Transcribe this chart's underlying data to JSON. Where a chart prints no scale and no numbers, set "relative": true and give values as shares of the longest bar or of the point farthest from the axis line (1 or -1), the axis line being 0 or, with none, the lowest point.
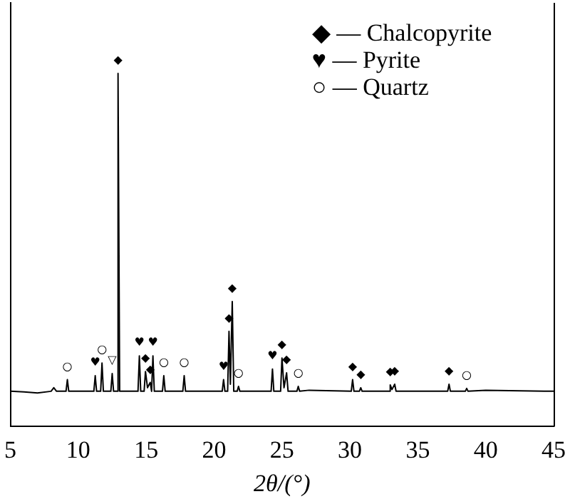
{
  "chart_data": {
    "type": "line",
    "relative": true,
    "xlabel": "2θ/(°)",
    "xlim": [
      5,
      45
    ],
    "xticks": [
      5,
      10,
      15,
      20,
      25,
      30,
      35,
      40,
      45
    ],
    "grid": false,
    "legend": false,
    "marker": "none",
    "line_style": "solid",
    "series": [
      {
        "color": "#000000",
        "x": [
          5,
          6,
          7,
          8,
          8.2,
          8.4,
          9.1,
          9.2,
          9.3,
          10.5,
          11.15,
          11.25,
          11.35,
          11.65,
          11.75,
          11.85,
          12.4,
          12.5,
          12.6,
          12.85,
          12.93,
          13.05,
          14.4,
          14.5,
          14.6,
          14.85,
          14.95,
          15.1,
          15.3,
          15.4,
          15.5,
          15.6,
          16.2,
          16.3,
          16.4,
          17.7,
          17.8,
          17.9,
          20.6,
          20.7,
          20.8,
          21.0,
          21.1,
          21.2,
          21.34,
          21.45,
          21.7,
          21.8,
          21.9,
          24.2,
          24.3,
          24.4,
          24.9,
          25.0,
          25.15,
          25.34,
          25.45,
          26.1,
          26.2,
          26.3,
          27,
          30.1,
          30.2,
          30.3,
          30.7,
          30.8,
          30.9,
          32.9,
          32.97,
          33.1,
          33.3,
          33.4,
          37.2,
          37.3,
          37.4,
          38.5,
          38.6,
          38.7,
          40,
          45
        ],
        "values": [
          0.1,
          0.098,
          0.095,
          0.1,
          0.11,
          0.1,
          0.1,
          0.133,
          0.1,
          0.1,
          0.1,
          0.144,
          0.1,
          0.1,
          0.18,
          0.1,
          0.1,
          0.15,
          0.1,
          0.1,
          1.0,
          0.1,
          0.1,
          0.2,
          0.1,
          0.1,
          0.156,
          0.11,
          0.125,
          0.1,
          0.2,
          0.1,
          0.1,
          0.144,
          0.1,
          0.1,
          0.144,
          0.1,
          0.1,
          0.133,
          0.1,
          0.1,
          0.27,
          0.12,
          0.354,
          0.1,
          0.1,
          0.114,
          0.1,
          0.1,
          0.163,
          0.1,
          0.1,
          0.194,
          0.11,
          0.152,
          0.1,
          0.1,
          0.114,
          0.1,
          0.103,
          0.1,
          0.133,
          0.1,
          0.1,
          0.11,
          0.1,
          0.1,
          0.118,
          0.105,
          0.12,
          0.1,
          0.1,
          0.12,
          0.1,
          0.1,
          0.108,
          0.1,
          0.103,
          0.1
        ]
      }
    ],
    "annotations": [
      "◆ — Chalcopyrite",
      "♥ — Pyrite",
      "○ — Quartz",
      {
        "text": "○",
        "x": 9.2,
        "y": 0.133
      },
      {
        "text": "♥",
        "x": 11.25,
        "y": 0.144
      },
      {
        "text": "○",
        "x": 11.75,
        "y": 0.18
      },
      {
        "text": "▽",
        "x": 12.5,
        "y": 0.15
      },
      {
        "text": "◆",
        "x": 12.93,
        "y": 1.0
      },
      {
        "text": "♥",
        "x": 14.5,
        "y": 0.2
      },
      {
        "text": "◆",
        "x": 14.95,
        "y": 0.156
      },
      {
        "text": "◆",
        "x": 15.3,
        "y": 0.125
      },
      {
        "text": "♥",
        "x": 15.5,
        "y": 0.2
      },
      {
        "text": "○",
        "x": 16.3,
        "y": 0.144
      },
      {
        "text": "○",
        "x": 17.8,
        "y": 0.144
      },
      {
        "text": "♥",
        "x": 20.7,
        "y": 0.133
      },
      {
        "text": "◆",
        "x": 21.1,
        "y": 0.27
      },
      {
        "text": "◆",
        "x": 21.34,
        "y": 0.354
      },
      {
        "text": "○",
        "x": 21.8,
        "y": 0.114
      },
      {
        "text": "♥",
        "x": 24.3,
        "y": 0.163
      },
      {
        "text": "◆",
        "x": 25.0,
        "y": 0.194
      },
      {
        "text": "◆",
        "x": 25.34,
        "y": 0.152
      },
      {
        "text": "○",
        "x": 26.2,
        "y": 0.114
      },
      {
        "text": "◆",
        "x": 30.2,
        "y": 0.133
      },
      {
        "text": "◆",
        "x": 30.8,
        "y": 0.11
      },
      {
        "text": "◆",
        "x": 32.97,
        "y": 0.118
      },
      {
        "text": "◆",
        "x": 33.3,
        "y": 0.12
      },
      {
        "text": "◆",
        "x": 37.3,
        "y": 0.12
      },
      {
        "text": "○",
        "x": 38.6,
        "y": 0.108
      }
    ]
  }
}
